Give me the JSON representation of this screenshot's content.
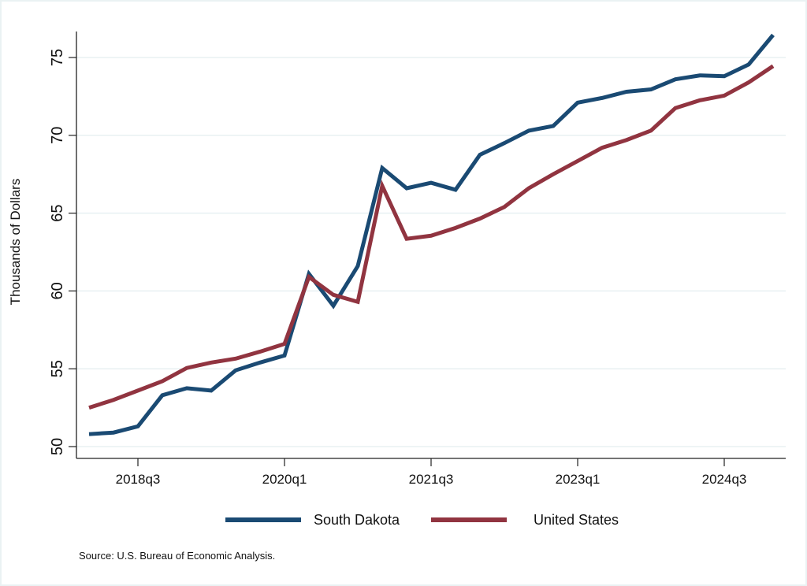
{
  "chart_data": {
    "type": "line",
    "title": "",
    "xlabel": "",
    "ylabel": "Thousands of Dollars",
    "ylim": [
      49.5,
      77
    ],
    "yticks": [
      50,
      55,
      60,
      65,
      70,
      75
    ],
    "ytick_labels": [
      "50",
      "55",
      "60",
      "65",
      "70",
      "75"
    ],
    "xticks": [
      "2018q3",
      "2020q1",
      "2021q3",
      "2023q1",
      "2024q3"
    ],
    "grid": true,
    "legend_position": "bottom",
    "x": [
      "2018q1",
      "2018q2",
      "2018q3",
      "2018q4",
      "2019q1",
      "2019q2",
      "2019q3",
      "2019q4",
      "2020q1",
      "2020q2",
      "2020q3",
      "2020q4",
      "2021q1",
      "2021q2",
      "2021q3",
      "2021q4",
      "2022q1",
      "2022q2",
      "2022q3",
      "2022q4",
      "2023q1",
      "2023q2",
      "2023q3",
      "2023q4",
      "2024q1",
      "2024q2",
      "2024q3",
      "2024q4",
      "2025q1"
    ],
    "series": [
      {
        "name": "South Dakota",
        "color": "#1a4a73",
        "values": [
          50.8,
          50.9,
          51.3,
          53.3,
          53.75,
          53.6,
          54.9,
          55.4,
          55.85,
          61.1,
          59.05,
          61.6,
          67.9,
          66.6,
          66.95,
          66.5,
          68.75,
          69.5,
          70.3,
          70.6,
          72.1,
          72.4,
          72.8,
          72.95,
          73.6,
          73.85,
          73.8,
          74.55,
          76.45
        ]
      },
      {
        "name": "United States",
        "color": "#913440",
        "values": [
          52.5,
          53.0,
          53.6,
          54.2,
          55.05,
          55.4,
          55.65,
          56.1,
          56.6,
          60.9,
          59.75,
          59.3,
          66.75,
          63.35,
          63.55,
          64.05,
          64.65,
          65.4,
          66.6,
          67.5,
          68.35,
          69.2,
          69.7,
          70.3,
          71.75,
          72.25,
          72.55,
          73.4,
          74.45
        ]
      }
    ],
    "source_note": "Source: U.S. Bureau of Economic Analysis."
  }
}
